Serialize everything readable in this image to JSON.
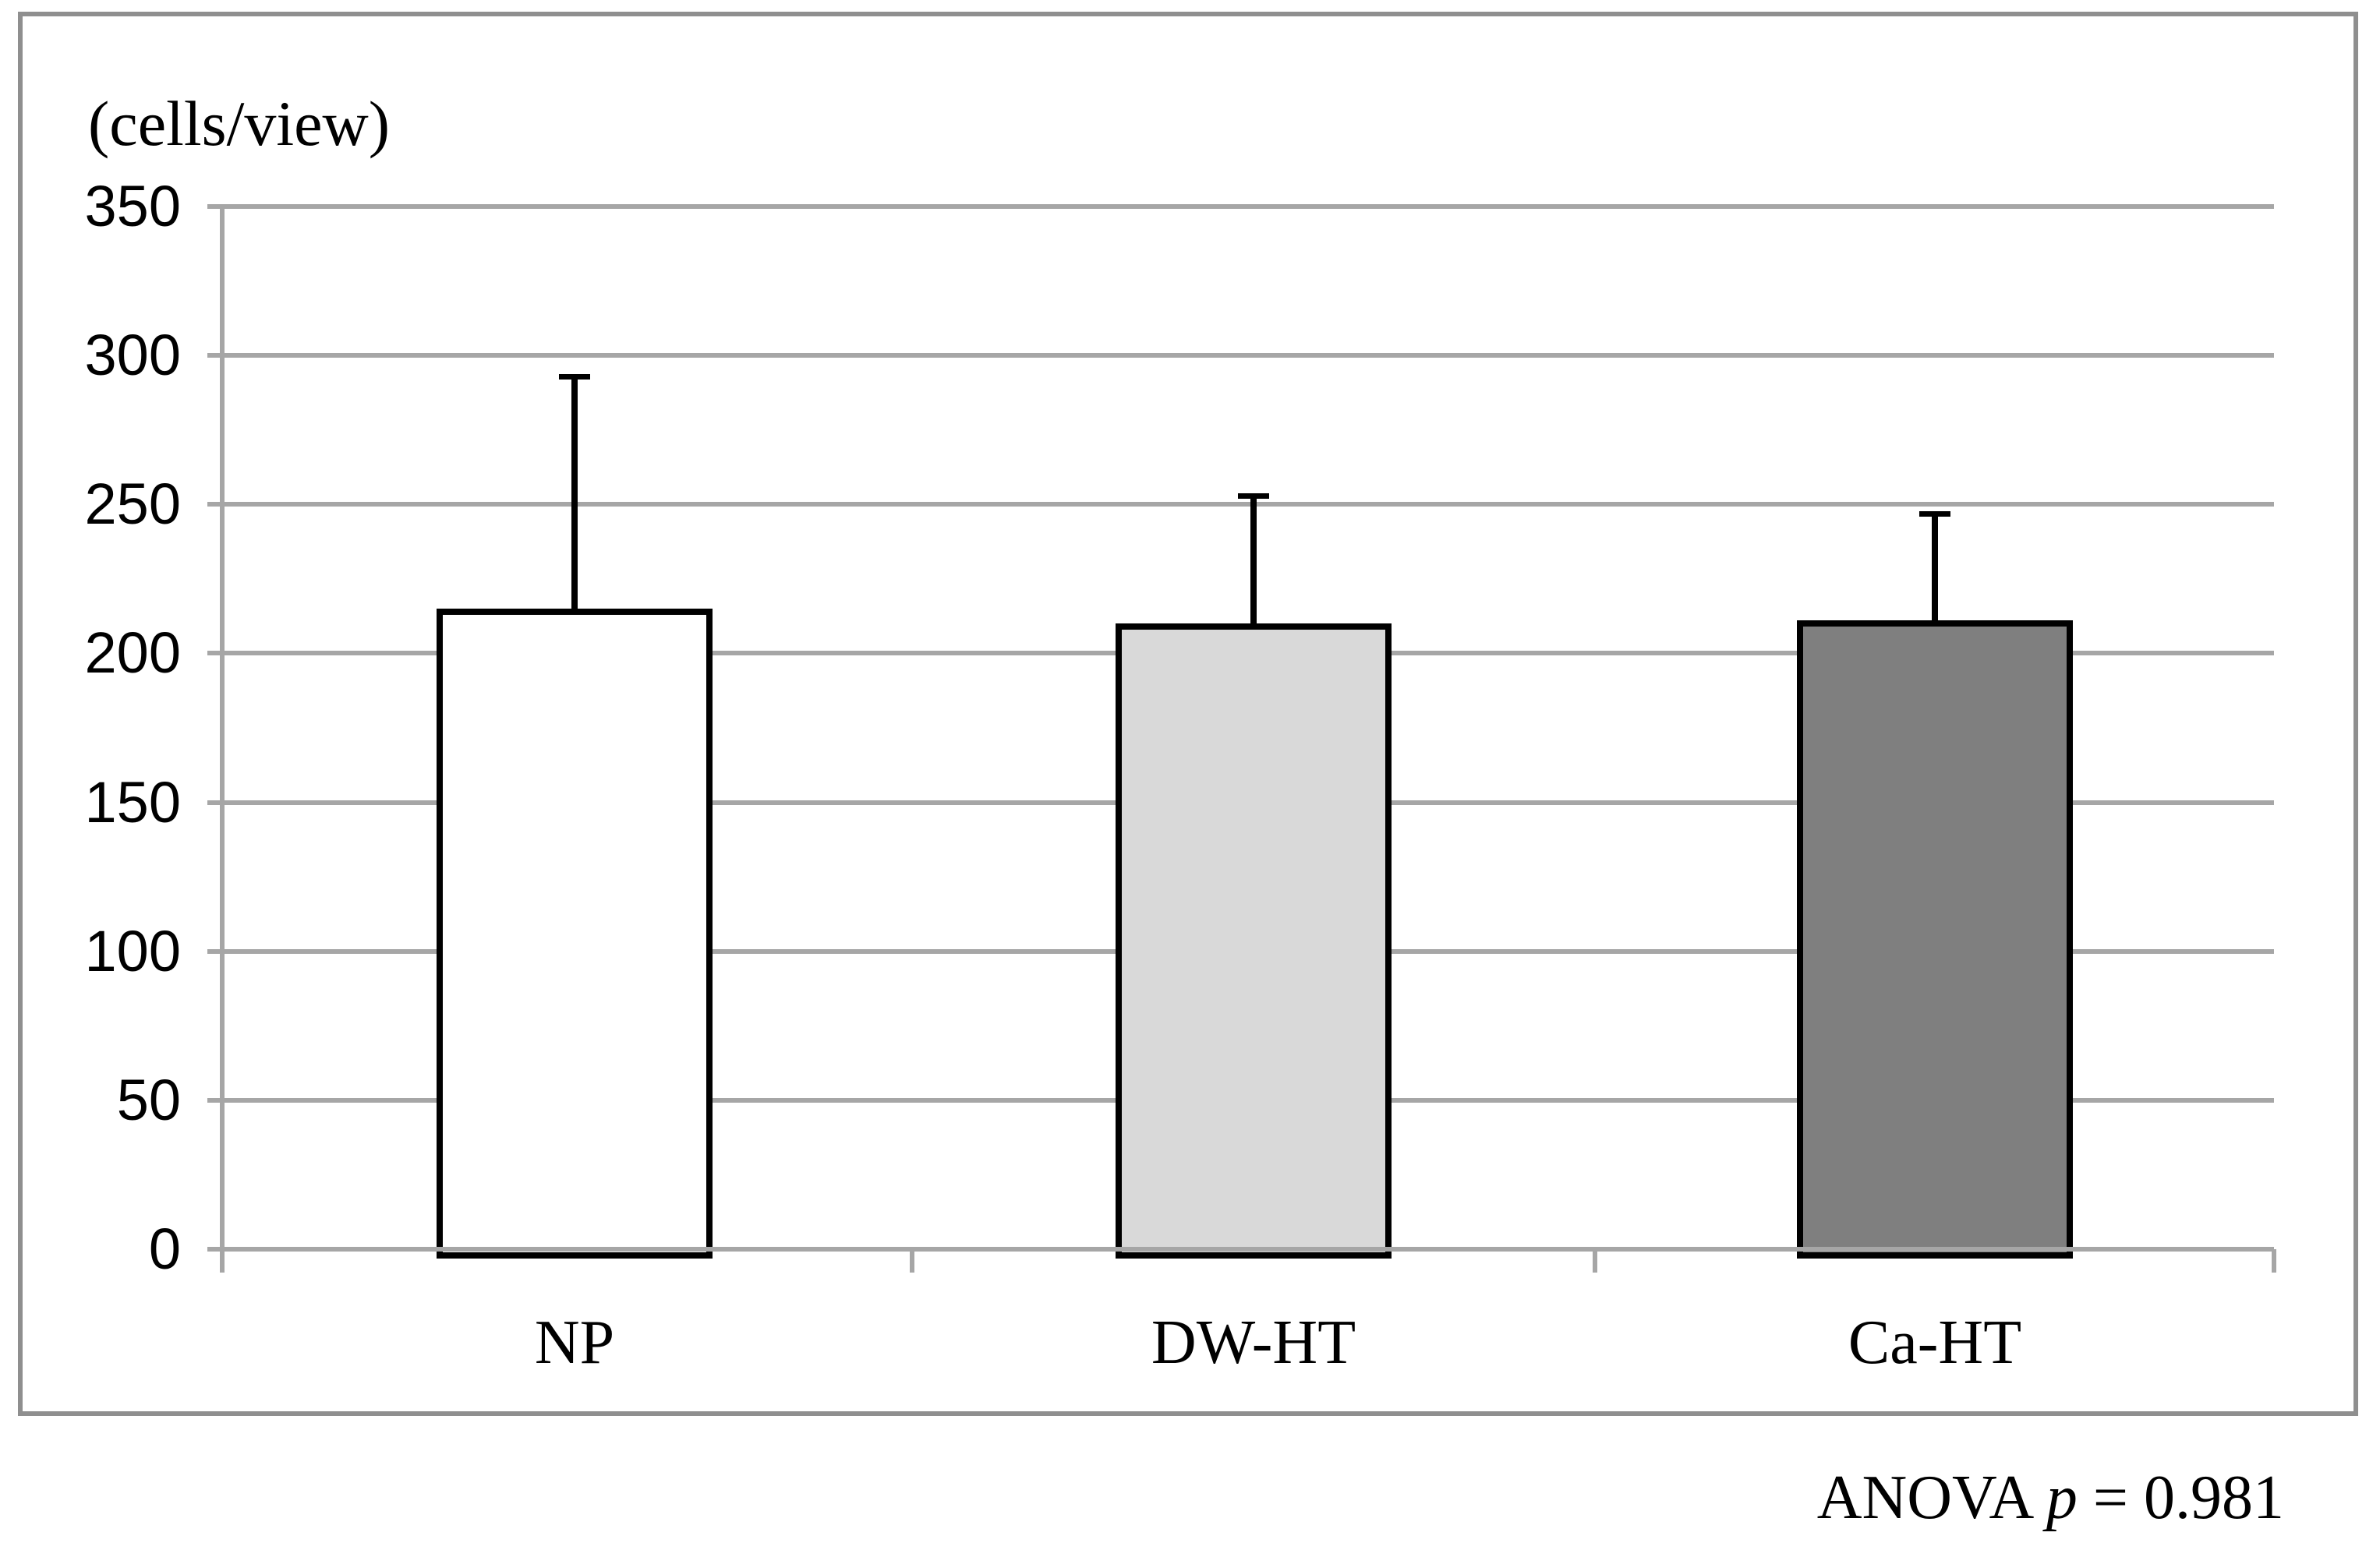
{
  "figure": {
    "y_axis_unit": "(cells/view)",
    "annotation": {
      "prefix": "ANOVA",
      "p_symbol": "p",
      "value": "= 0.981"
    }
  },
  "chart_data": {
    "type": "bar",
    "title": "",
    "xlabel": "",
    "ylabel": "(cells/view)",
    "categories": [
      "NP",
      "DW-HT",
      "Ca-HT"
    ],
    "values": [
      215,
      210,
      211
    ],
    "error_plus": [
      78,
      43,
      36
    ],
    "error_bar_tops": [
      293,
      253,
      247
    ],
    "ylim": [
      0,
      350
    ],
    "yticks": [
      0,
      50,
      100,
      150,
      200,
      250,
      300,
      350
    ],
    "grid": true,
    "legend": false,
    "annotation": "ANOVA p = 0.981",
    "bar_fill_colors": [
      "#ffffff",
      "#d9d9d9",
      "#7f7f7f"
    ],
    "bar_border_color": "#000000",
    "error_bar_color": "#000000",
    "gridline_color": "#a6a6a6",
    "frame_border_color": "#8f8f8f",
    "background_color": "#ffffff"
  }
}
